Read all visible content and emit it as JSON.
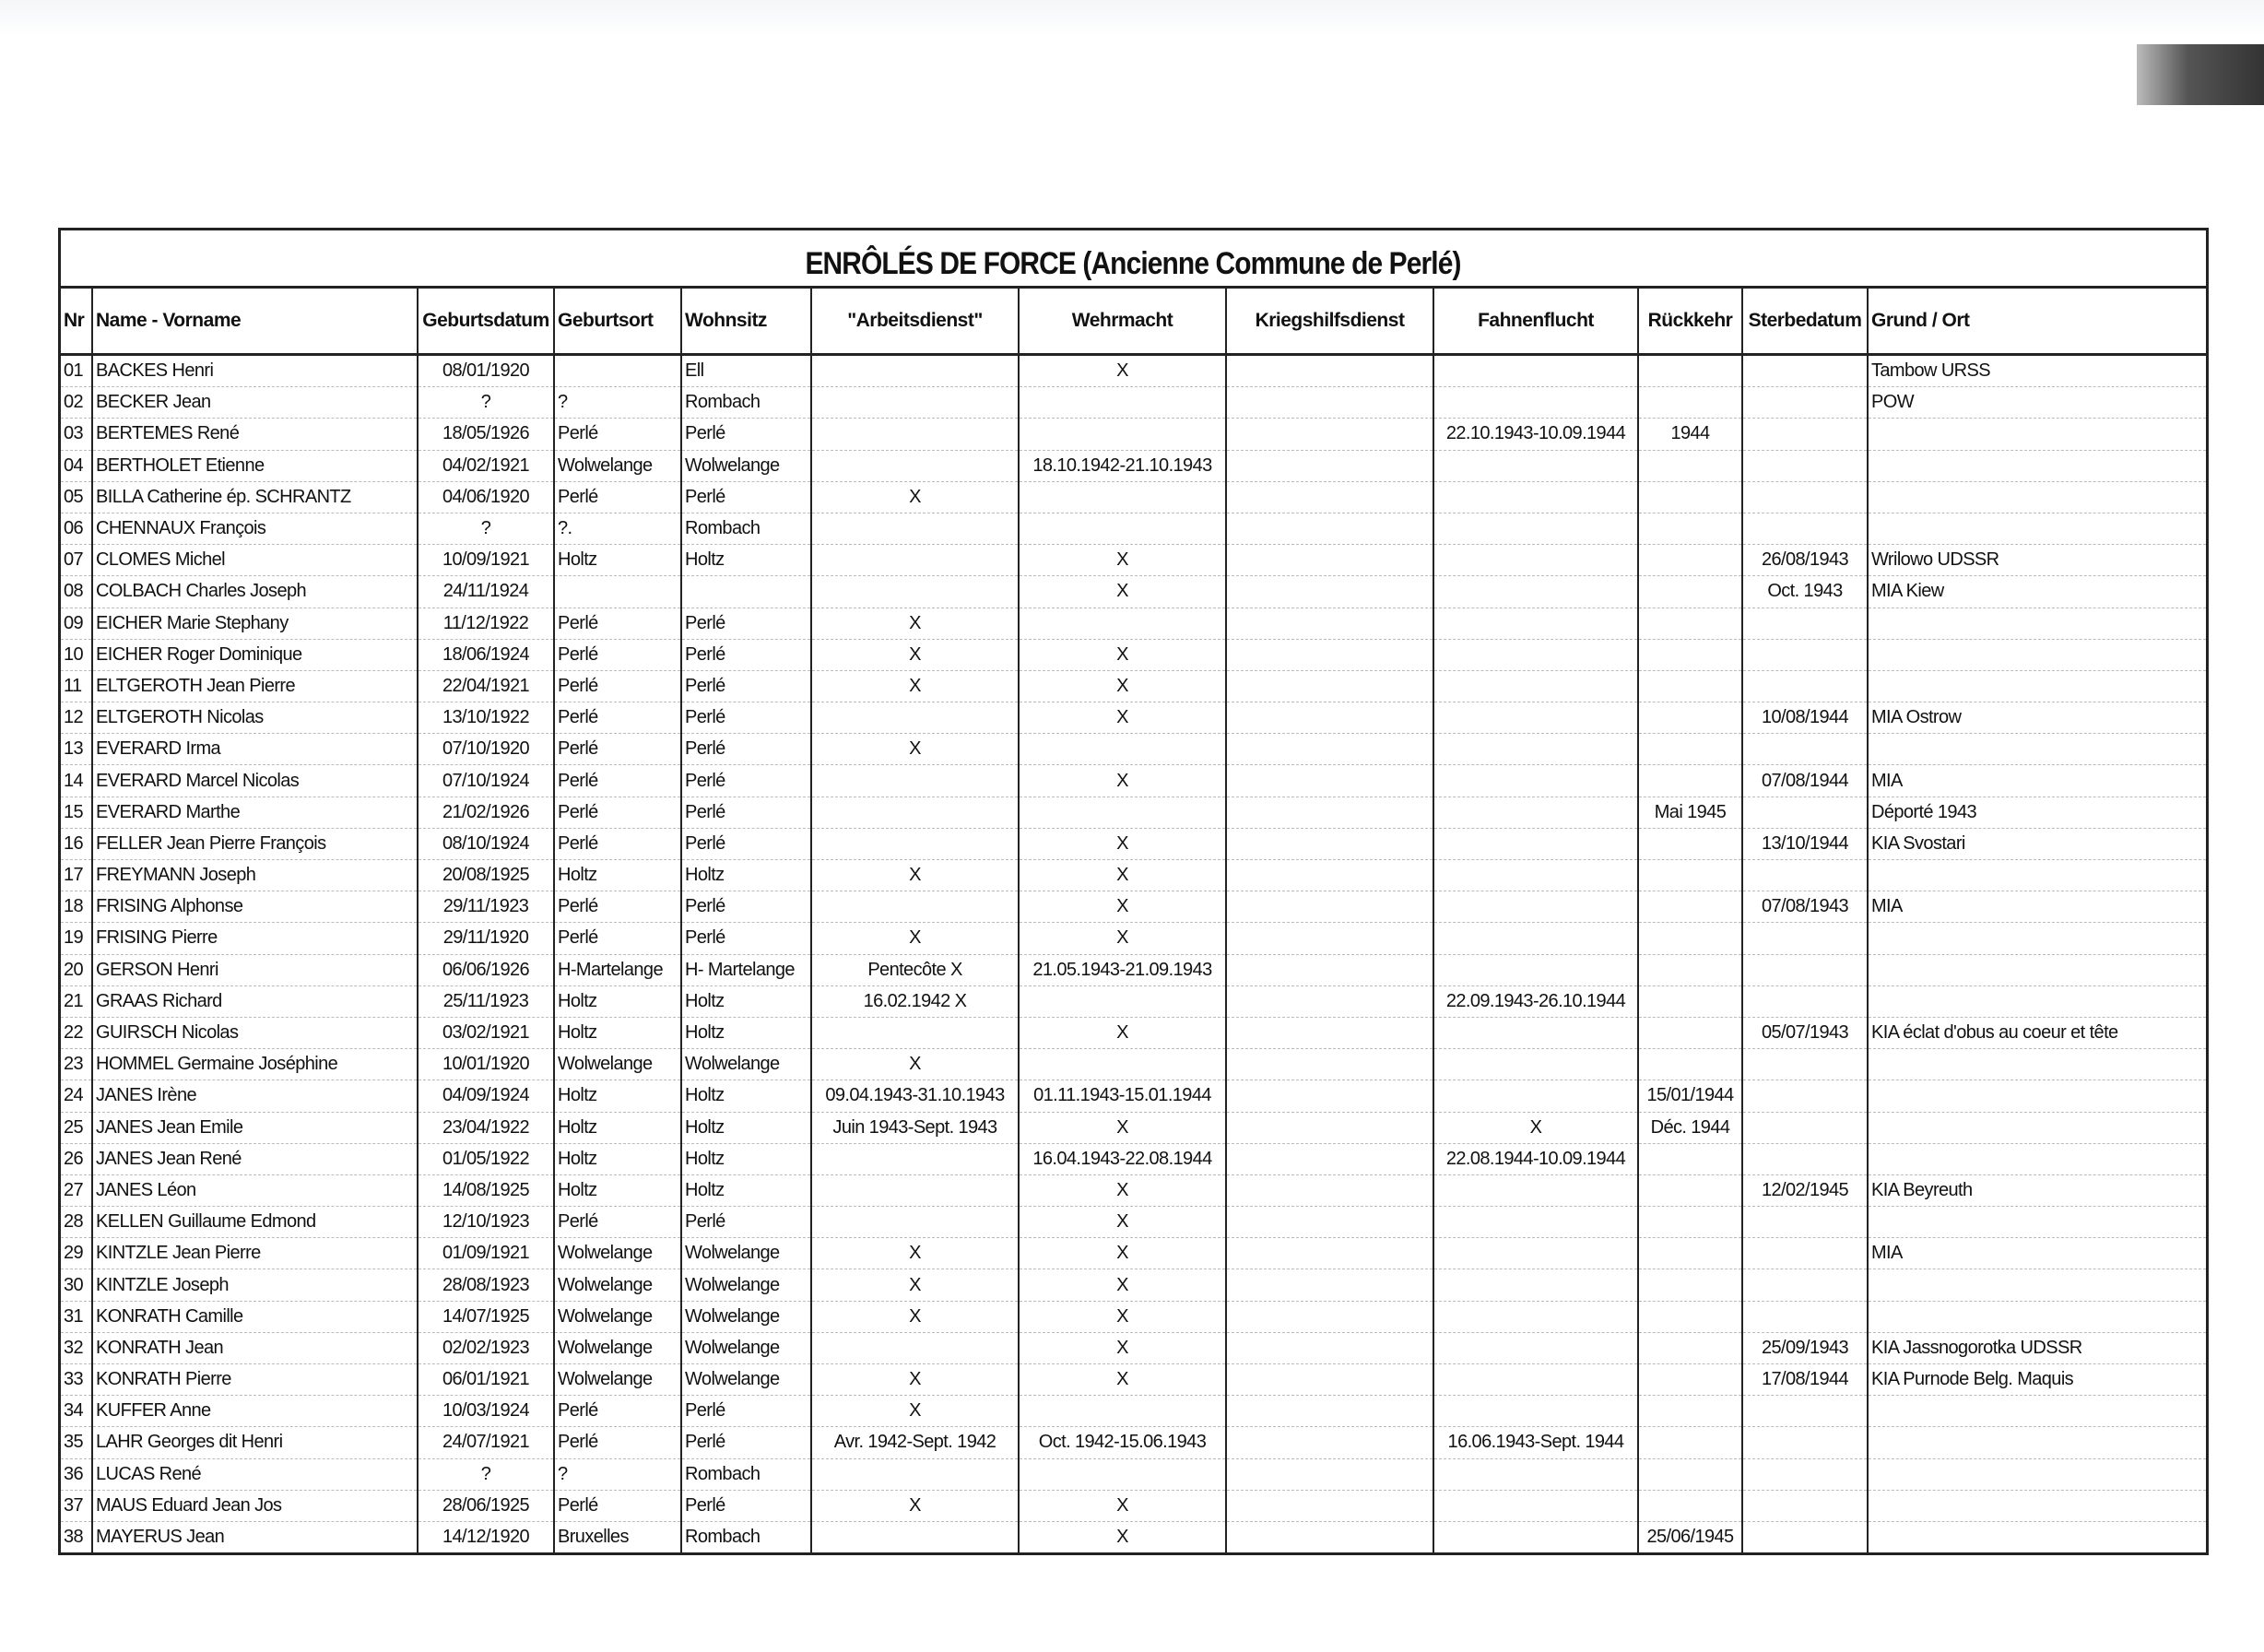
{
  "title": "ENRÔLÉS DE FORCE  (Ancienne Commune de Perlé)",
  "columns": [
    "Nr",
    "Name - Vorname",
    "Geburtsdatum",
    "Geburtsort",
    "Wohnsitz",
    "\"Arbeitsdienst\"",
    "Wehrmacht",
    "Kriegshilfsdienst",
    "Fahnenflucht",
    "Rückkehr",
    "Sterbedatum",
    "Grund / Ort"
  ],
  "rows": [
    [
      "01",
      "BACKES Henri",
      "08/01/1920",
      "",
      "Ell",
      "",
      "X",
      "",
      "",
      "",
      "",
      "Tambow URSS"
    ],
    [
      "02",
      "BECKER Jean",
      "?",
      "?",
      "Rombach",
      "",
      "",
      "",
      "",
      "",
      "",
      "POW"
    ],
    [
      "03",
      "BERTEMES René",
      "18/05/1926",
      "Perlé",
      "Perlé",
      "",
      "",
      "",
      "22.10.1943-10.09.1944",
      "1944",
      "",
      ""
    ],
    [
      "04",
      "BERTHOLET Etienne",
      "04/02/1921",
      "Wolwelange",
      "Wolwelange",
      "",
      "18.10.1942-21.10.1943",
      "",
      "",
      "",
      "",
      ""
    ],
    [
      "05",
      "BILLA Catherine ép. SCHRANTZ",
      "04/06/1920",
      "Perlé",
      "Perlé",
      "X",
      "",
      "",
      "",
      "",
      "",
      ""
    ],
    [
      "06",
      "CHENNAUX François",
      "?",
      "?.",
      "Rombach",
      "",
      "",
      "",
      "",
      "",
      "",
      ""
    ],
    [
      "07",
      "CLOMES Michel",
      "10/09/1921",
      "Holtz",
      "Holtz",
      "",
      "X",
      "",
      "",
      "",
      "26/08/1943",
      "Wrilowo UDSSR"
    ],
    [
      "08",
      "COLBACH Charles Joseph",
      "24/11/1924",
      "",
      "",
      "",
      "X",
      "",
      "",
      "",
      "Oct. 1943",
      "MIA Kiew"
    ],
    [
      "09",
      "EICHER Marie Stephany",
      "11/12/1922",
      "Perlé",
      "Perlé",
      "X",
      "",
      "",
      "",
      "",
      "",
      ""
    ],
    [
      "10",
      "EICHER Roger Dominique",
      "18/06/1924",
      "Perlé",
      "Perlé",
      "X",
      "X",
      "",
      "",
      "",
      "",
      ""
    ],
    [
      "11",
      "ELTGEROTH Jean Pierre",
      "22/04/1921",
      "Perlé",
      "Perlé",
      "X",
      "X",
      "",
      "",
      "",
      "",
      ""
    ],
    [
      "12",
      "ELTGEROTH Nicolas",
      "13/10/1922",
      "Perlé",
      "Perlé",
      "",
      "X",
      "",
      "",
      "",
      "10/08/1944",
      "MIA Ostrow"
    ],
    [
      "13",
      "EVERARD Irma",
      "07/10/1920",
      "Perlé",
      "Perlé",
      "X",
      "",
      "",
      "",
      "",
      "",
      ""
    ],
    [
      "14",
      "EVERARD Marcel Nicolas",
      "07/10/1924",
      "Perlé",
      "Perlé",
      "",
      "X",
      "",
      "",
      "",
      "07/08/1944",
      "MIA"
    ],
    [
      "15",
      "EVERARD Marthe",
      "21/02/1926",
      "Perlé",
      "Perlé",
      "",
      "",
      "",
      "",
      "Mai 1945",
      "",
      "Déporté 1943"
    ],
    [
      "16",
      "FELLER Jean Pierre François",
      "08/10/1924",
      "Perlé",
      "Perlé",
      "",
      "X",
      "",
      "",
      "",
      "13/10/1944",
      "KIA Svostari"
    ],
    [
      "17",
      "FREYMANN Joseph",
      "20/08/1925",
      "Holtz",
      "Holtz",
      "X",
      "X",
      "",
      "",
      "",
      "",
      ""
    ],
    [
      "18",
      "FRISING Alphonse",
      "29/11/1923",
      "Perlé",
      "Perlé",
      "",
      "X",
      "",
      "",
      "",
      "07/08/1943",
      "MIA"
    ],
    [
      "19",
      "FRISING Pierre",
      "29/11/1920",
      "Perlé",
      "Perlé",
      "X",
      "X",
      "",
      "",
      "",
      "",
      ""
    ],
    [
      "20",
      "GERSON Henri",
      "06/06/1926",
      "H-Martelange",
      "H- Martelange",
      "Pentecôte X",
      "21.05.1943-21.09.1943",
      "",
      "",
      "",
      "",
      ""
    ],
    [
      "21",
      "GRAAS Richard",
      "25/11/1923",
      "Holtz",
      "Holtz",
      "16.02.1942 X",
      "",
      "",
      "22.09.1943-26.10.1944",
      "",
      "",
      ""
    ],
    [
      "22",
      "GUIRSCH Nicolas",
      "03/02/1921",
      "Holtz",
      "Holtz",
      "",
      "X",
      "",
      "",
      "",
      "05/07/1943",
      "KIA éclat d'obus au coeur et tête"
    ],
    [
      "23",
      "HOMMEL Germaine Joséphine",
      "10/01/1920",
      "Wolwelange",
      "Wolwelange",
      "X",
      "",
      "",
      "",
      "",
      "",
      ""
    ],
    [
      "24",
      "JANES Irène",
      "04/09/1924",
      "Holtz",
      "Holtz",
      "09.04.1943-31.10.1943",
      "01.11.1943-15.01.1944",
      "",
      "",
      "15/01/1944",
      "",
      ""
    ],
    [
      "25",
      "JANES Jean Emile",
      "23/04/1922",
      "Holtz",
      "Holtz",
      "Juin 1943-Sept. 1943",
      "X",
      "",
      "X",
      "Déc. 1944",
      "",
      ""
    ],
    [
      "26",
      "JANES Jean René",
      "01/05/1922",
      "Holtz",
      "Holtz",
      "",
      "16.04.1943-22.08.1944",
      "",
      "22.08.1944-10.09.1944",
      "",
      "",
      ""
    ],
    [
      "27",
      "JANES Léon",
      "14/08/1925",
      "Holtz",
      "Holtz",
      "",
      "X",
      "",
      "",
      "",
      "12/02/1945",
      "KIA Beyreuth"
    ],
    [
      "28",
      "KELLEN Guillaume Edmond",
      "12/10/1923",
      "Perlé",
      "Perlé",
      "",
      "X",
      "",
      "",
      "",
      "",
      ""
    ],
    [
      "29",
      "KINTZLE Jean Pierre",
      "01/09/1921",
      "Wolwelange",
      "Wolwelange",
      "X",
      "X",
      "",
      "",
      "",
      "",
      "MIA"
    ],
    [
      "30",
      "KINTZLE Joseph",
      "28/08/1923",
      "Wolwelange",
      "Wolwelange",
      "X",
      "X",
      "",
      "",
      "",
      "",
      ""
    ],
    [
      "31",
      "KONRATH Camille",
      "14/07/1925",
      "Wolwelange",
      "Wolwelange",
      "X",
      "X",
      "",
      "",
      "",
      "",
      ""
    ],
    [
      "32",
      "KONRATH Jean",
      "02/02/1923",
      "Wolwelange",
      "Wolwelange",
      "",
      "X",
      "",
      "",
      "",
      "25/09/1943",
      "KIA Jassnogorotka UDSSR"
    ],
    [
      "33",
      "KONRATH Pierre",
      "06/01/1921",
      "Wolwelange",
      "Wolwelange",
      "X",
      "X",
      "",
      "",
      "",
      "17/08/1944",
      "KIA Purnode Belg. Maquis"
    ],
    [
      "34",
      "KUFFER Anne",
      "10/03/1924",
      "Perlé",
      "Perlé",
      "X",
      "",
      "",
      "",
      "",
      "",
      ""
    ],
    [
      "35",
      "LAHR Georges dit Henri",
      "24/07/1921",
      "Perlé",
      "Perlé",
      "Avr. 1942-Sept. 1942",
      "Oct. 1942-15.06.1943",
      "",
      "16.06.1943-Sept. 1944",
      "",
      "",
      ""
    ],
    [
      "36",
      "LUCAS René",
      "?",
      "?",
      "Rombach",
      "",
      "",
      "",
      "",
      "",
      "",
      ""
    ],
    [
      "37",
      "MAUS Eduard Jean Jos",
      "28/06/1925",
      "Perlé",
      "Perlé",
      "X",
      "X",
      "",
      "",
      "",
      "",
      ""
    ],
    [
      "38",
      "MAYERUS Jean",
      "14/12/1920",
      "Bruxelles",
      "Rombach",
      "",
      "X",
      "",
      "",
      "25/06/1945",
      "",
      ""
    ]
  ]
}
